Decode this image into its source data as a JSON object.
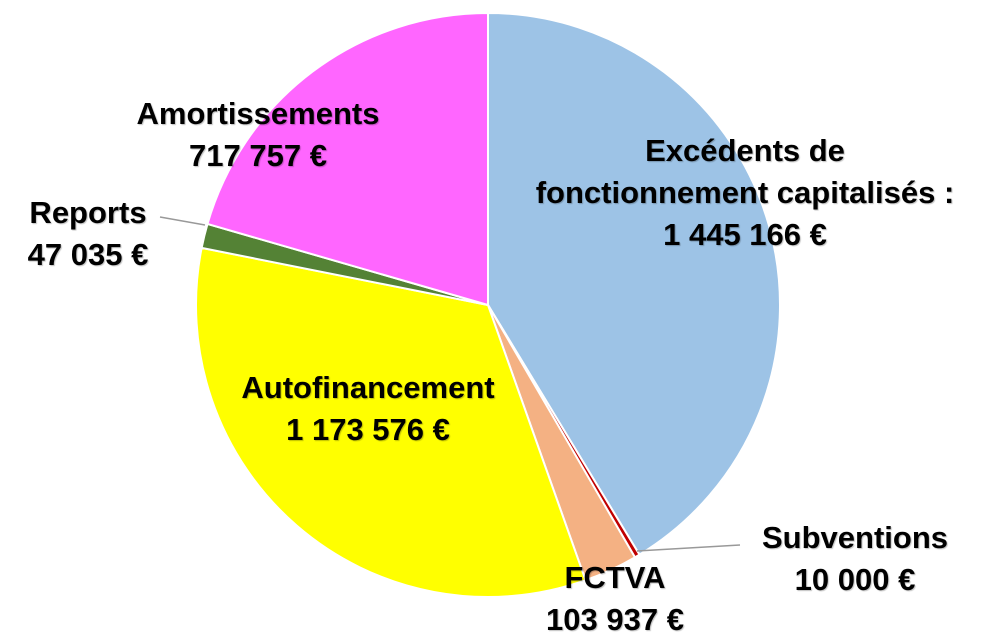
{
  "chart_data": {
    "type": "pie",
    "categories": [
      "Excédents de fonctionnement capitalisés :",
      "Subventions",
      "FCTVA",
      "Autofinancement",
      "Reports",
      "Amortissements"
    ],
    "values": [
      1445166,
      10000,
      103937,
      1173576,
      47035,
      717757
    ],
    "value_labels": [
      "1 445 166 €",
      "10 000 €",
      "103 937 €",
      "1 173 576 €",
      "47 035 €",
      "717 757 €"
    ],
    "colors": [
      "#9dc3e6",
      "#c00000",
      "#f4b183",
      "#ffff00",
      "#548235",
      "#ff66ff"
    ]
  }
}
